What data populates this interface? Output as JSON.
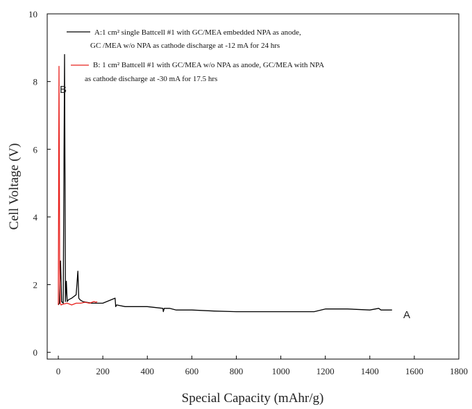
{
  "chart_data": {
    "type": "line",
    "title": "",
    "xlabel": "Special Capacity (mAhr/g)",
    "ylabel": "Cell Voltage (V)",
    "xlim": [
      -50,
      1800
    ],
    "ylim": [
      -0.2,
      10
    ],
    "x_ticks": [
      "0",
      "200",
      "400",
      "600",
      "800",
      "1000",
      "1200",
      "1400",
      "1600",
      "1800"
    ],
    "x_tick_values": [
      0,
      200,
      400,
      600,
      800,
      1000,
      1200,
      1400,
      1600,
      1800
    ],
    "y_ticks": [
      "0",
      "2",
      "4",
      "6",
      "8",
      "10"
    ],
    "y_tick_values": [
      0,
      2,
      4,
      6,
      8,
      10
    ],
    "grid": false,
    "legend_position": "top",
    "series": [
      {
        "label": "A",
        "legend_line1": "A:1 cm² single Battcell #1 with GC/MEA embedded NPA as anode,",
        "legend_line2": "GC /MEA w/o NPA as cathode discharge at -12 mA for 24 hrs",
        "color": "#000000",
        "x": [
          0,
          5,
          10,
          15,
          22,
          28,
          32,
          36,
          40,
          45,
          60,
          80,
          88,
          92,
          98,
          110,
          150,
          200,
          255,
          258,
          262,
          300,
          400,
          470,
          472,
          476,
          500,
          530,
          600,
          700,
          800,
          900,
          1000,
          1100,
          1150,
          1200,
          1300,
          1400,
          1440,
          1450,
          1500
        ],
        "y": [
          1.4,
          1.45,
          2.7,
          1.5,
          1.45,
          8.8,
          1.5,
          2.1,
          1.5,
          1.55,
          1.6,
          1.7,
          2.4,
          1.6,
          1.55,
          1.5,
          1.45,
          1.45,
          1.6,
          1.35,
          1.4,
          1.35,
          1.35,
          1.3,
          1.2,
          1.3,
          1.3,
          1.25,
          1.25,
          1.22,
          1.2,
          1.2,
          1.2,
          1.2,
          1.2,
          1.28,
          1.28,
          1.25,
          1.3,
          1.25,
          1.25
        ]
      },
      {
        "label": "B",
        "legend_line1": "B: 1 cm² Battcell #1 with GC/MEA w/o NPA as anode, GC/MEA with NPA",
        "legend_line2": "as cathode discharge at -30 mA for 17.5 hrs",
        "color": "#e8201c",
        "x": [
          0,
          3,
          6,
          9,
          12,
          20,
          40,
          60,
          80,
          100,
          120,
          140,
          160,
          170,
          175
        ],
        "y": [
          1.4,
          8.45,
          2.5,
          1.45,
          1.4,
          1.42,
          1.45,
          1.4,
          1.45,
          1.45,
          1.48,
          1.45,
          1.5,
          1.48,
          1.5
        ]
      }
    ]
  }
}
